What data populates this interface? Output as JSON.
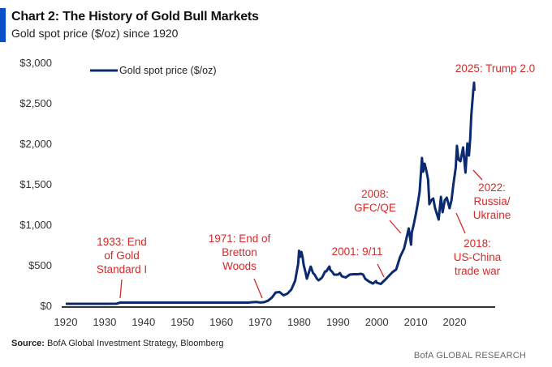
{
  "header": {
    "title": "Chart 2: The History of Gold Bull Markets",
    "subtitle": "Gold spot price ($/oz) since 1920"
  },
  "footer": {
    "source_label": "Source:",
    "source_text": " BofA Global Investment Strategy, Bloomberg",
    "brand": "BofA GLOBAL RESEARCH"
  },
  "colors": {
    "series": "#0b2a6f",
    "annotation": "#d42a2a",
    "accent": "#0a4fc7"
  },
  "chart_data": {
    "type": "line",
    "title": "Chart 2: The History of Gold Bull Markets",
    "subtitle": "Gold spot price ($/oz) since 1920",
    "xlabel": "",
    "ylabel": "",
    "xlim": [
      1920,
      2025
    ],
    "ylim": [
      0,
      3000
    ],
    "grid": false,
    "legend": {
      "position": "top-left",
      "entries": [
        "Gold spot price ($/oz)"
      ]
    },
    "x_ticks": [
      1920,
      1930,
      1940,
      1950,
      1960,
      1970,
      1980,
      1990,
      2000,
      2010,
      2020
    ],
    "x_tick_labels": [
      "1920",
      "1930",
      "1940",
      "1950",
      "1960",
      "1970",
      "1980",
      "1990",
      "2000",
      "2010",
      "2020"
    ],
    "y_ticks": [
      0,
      500,
      1000,
      1500,
      2000,
      2500,
      3000
    ],
    "y_tick_labels": [
      "$0",
      "$500",
      "$1,000",
      "$1,500",
      "$2,000",
      "$2,500",
      "$3,000"
    ],
    "series": [
      {
        "name": "Gold spot price ($/oz)",
        "points": [
          [
            1920,
            20
          ],
          [
            1925,
            20
          ],
          [
            1930,
            20
          ],
          [
            1933,
            21
          ],
          [
            1934,
            35
          ],
          [
            1940,
            35
          ],
          [
            1950,
            35
          ],
          [
            1960,
            35
          ],
          [
            1967,
            35
          ],
          [
            1968,
            40
          ],
          [
            1969,
            42
          ],
          [
            1970,
            36
          ],
          [
            1971,
            40
          ],
          [
            1972,
            58
          ],
          [
            1973,
            97
          ],
          [
            1974,
            160
          ],
          [
            1975,
            165
          ],
          [
            1976,
            125
          ],
          [
            1977,
            145
          ],
          [
            1978,
            195
          ],
          [
            1979,
            305
          ],
          [
            1979.8,
            520
          ],
          [
            1980.0,
            675
          ],
          [
            1980.3,
            600
          ],
          [
            1980.6,
            660
          ],
          [
            1980.9,
            600
          ],
          [
            1981.2,
            500
          ],
          [
            1981.6,
            420
          ],
          [
            1982,
            330
          ],
          [
            1982.6,
            420
          ],
          [
            1983,
            480
          ],
          [
            1983.6,
            400
          ],
          [
            1984,
            380
          ],
          [
            1984.6,
            330
          ],
          [
            1985,
            310
          ],
          [
            1985.6,
            330
          ],
          [
            1986,
            350
          ],
          [
            1986.7,
            420
          ],
          [
            1987,
            420
          ],
          [
            1987.8,
            480
          ],
          [
            1988,
            440
          ],
          [
            1988.6,
            410
          ],
          [
            1989,
            380
          ],
          [
            1990,
            380
          ],
          [
            1990.5,
            400
          ],
          [
            1991,
            360
          ],
          [
            1992,
            345
          ],
          [
            1993,
            380
          ],
          [
            1994,
            385
          ],
          [
            1995,
            385
          ],
          [
            1996,
            390
          ],
          [
            1996.5,
            380
          ],
          [
            1997,
            330
          ],
          [
            1998,
            295
          ],
          [
            1999,
            270
          ],
          [
            1999.8,
            300
          ],
          [
            2000,
            280
          ],
          [
            2001,
            265
          ],
          [
            2002,
            310
          ],
          [
            2003,
            360
          ],
          [
            2004,
            410
          ],
          [
            2005,
            445
          ],
          [
            2006,
            600
          ],
          [
            2006.5,
            650
          ],
          [
            2007,
            700
          ],
          [
            2007.5,
            800
          ],
          [
            2008.2,
            950
          ],
          [
            2008.8,
            750
          ],
          [
            2009,
            900
          ],
          [
            2009.5,
            1000
          ],
          [
            2010,
            1120
          ],
          [
            2010.5,
            1250
          ],
          [
            2011,
            1400
          ],
          [
            2011.6,
            1820
          ],
          [
            2011.9,
            1650
          ],
          [
            2012.3,
            1750
          ],
          [
            2012.8,
            1650
          ],
          [
            2013.2,
            1550
          ],
          [
            2013.5,
            1250
          ],
          [
            2014,
            1300
          ],
          [
            2014.5,
            1320
          ],
          [
            2015,
            1200
          ],
          [
            2015.9,
            1060
          ],
          [
            2016.5,
            1340
          ],
          [
            2016.9,
            1150
          ],
          [
            2017.5,
            1300
          ],
          [
            2018,
            1330
          ],
          [
            2018.7,
            1200
          ],
          [
            2019.2,
            1300
          ],
          [
            2019.7,
            1500
          ],
          [
            2020.3,
            1700
          ],
          [
            2020.6,
            1970
          ],
          [
            2021,
            1800
          ],
          [
            2021.5,
            1780
          ],
          [
            2022.2,
            1950
          ],
          [
            2022.8,
            1640
          ],
          [
            2023.3,
            2000
          ],
          [
            2023.7,
            1850
          ],
          [
            2024,
            2050
          ],
          [
            2024.3,
            2350
          ],
          [
            2024.8,
            2650
          ],
          [
            2025.0,
            2750
          ],
          [
            2025.1,
            2650
          ]
        ]
      }
    ],
    "annotations": [
      {
        "lines": [
          "1933: End",
          "of Gold",
          "Standard I"
        ],
        "year": 1933
      },
      {
        "lines": [
          "1971: End of",
          "Bretton",
          "Woods"
        ],
        "year": 1971
      },
      {
        "lines": [
          "2001: 9/11"
        ],
        "year": 2001
      },
      {
        "lines": [
          "2008:",
          "GFC/QE"
        ],
        "year": 2008
      },
      {
        "lines": [
          "2018:",
          "US-China",
          "trade war"
        ],
        "year": 2018
      },
      {
        "lines": [
          "2022:",
          "Russia/",
          "Ukraine"
        ],
        "year": 2022
      },
      {
        "lines": [
          "2025: Trump 2.0"
        ],
        "year": 2025
      }
    ]
  }
}
